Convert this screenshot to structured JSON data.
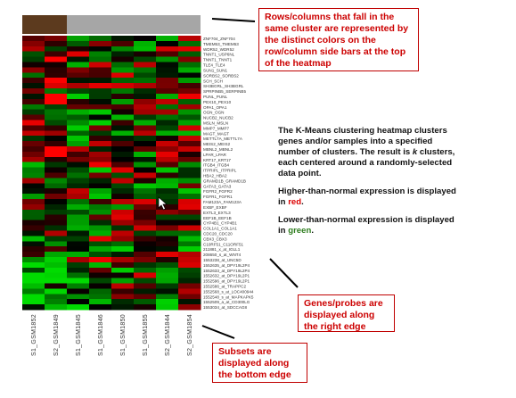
{
  "heatmap": {
    "side_bar_colors": [
      "#5c3a1e",
      "#a6a6a6"
    ],
    "side_bar_split": 2,
    "genes": [
      "ZNF704_ZNF704",
      "TMEM53_TMEM53",
      "WDR52_WDR52",
      "TNNT1_USP6NL",
      "TNNT1_TNNT1",
      "TLE4_TLE4",
      "SUN1_SUN1",
      "SORBS2_SORBS2",
      "SCH_SCH",
      "SH3BGRL_SH3BGRL",
      "SPRPINB5_SERPINB5",
      "PUNL_PUNL",
      "PEX10_PEX10",
      "OPA1_OPA1",
      "OGN_OGN",
      "NUCB2_NUCB2",
      "MSLN_MSLN",
      "MMP7_MMP7",
      "MAGT_MAGT",
      "METTL7A_METTL7A",
      "MEIS2_MEIS2",
      "MBNL2_MBNL2",
      "LPAR_LPAR",
      "KRT17_KRT17",
      "ITGB4_ITGB4",
      "ITPRIPL_ITPRIPL",
      "HBA2_HBA2",
      "GRAMD1B_GRAMD1B",
      "GATA3_GATA3",
      "FGFR2_FGFR2",
      "FGFR1_FGFR1",
      "FAM123A_FAM123A",
      "EXBF_EXBF",
      "EXTL3_EXTL3",
      "EEF1B_EEF1B",
      "CYP4B1_CYP4B1",
      "COL1A1_COL1A1",
      "CDC20_CDC20",
      "CBX3_CBX3",
      "C10RF51_C11ORF51",
      "211881_x_at_IGLL1",
      "208650_s_at_WNT4",
      "1553238_at_UNC5D",
      "1552635_at_DPY19L2P4",
      "1552633_at_DPY19L2P4",
      "1552632_at_DPY19L2P1",
      "1552596_at_DPY19L2P1",
      "1552586_at_TRAPPC2",
      "1552568_s_at_LOC400944",
      "1552548_s_at_MAPKAPK5",
      "1552509_a_at_CD300LG",
      "1553034_at_SDCCAG8"
    ],
    "samples": [
      "S1_GSM1852",
      "S2_GSM1849",
      "S1_GSM1845",
      "S1_GSM1846",
      "S1_GSM1850",
      "S1_GSM1855",
      "S2_GSM1844",
      "S2_GSM1854"
    ],
    "low_color": "#00cc00",
    "mid_color": "#000000",
    "high_color": "#ff0000"
  },
  "callouts": {
    "top": "Rows/columns that fall in the same cluster are represented by the distinct colors on the row/column side bars at the top of the heatmap",
    "right": "Genes/probes are displayed along the right edge",
    "bottom": "Subsets are displayed along the bottom edge"
  },
  "description": {
    "para1_prefix": "The K-Means clustering heatmap clusters genes and/or samples into a specified number of clusters. The result is ",
    "para1_k": "k",
    "para1_suffix": " clusters, each centered around a randomly-selected data point.",
    "para2_prefix": "Higher-than-normal expression is displayed in ",
    "para2_color": "red",
    "para2_suffix": ".",
    "para3_prefix": "Lower-than-normal expression is displayed in ",
    "para3_color": "green",
    "para3_suffix": "."
  }
}
